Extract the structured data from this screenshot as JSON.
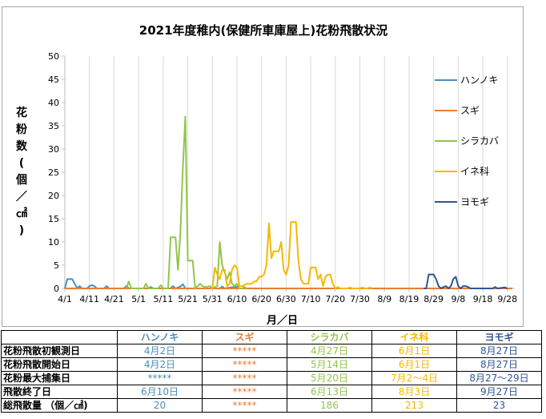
{
  "colors": {
    "alnus": "#4a8ec0",
    "cedar": "#ed7d31",
    "birch": "#92c54b",
    "grass": "#f5b800",
    "mugwort": "#2f5597"
  },
  "chart_data": {
    "type": "line",
    "title": "2021年度稚内(保健所車庫屋上)花粉飛散状況",
    "xlabel": "月／日",
    "ylabel": "花粉数(個／㎠)",
    "ylim": [
      0,
      50
    ],
    "yticks": [
      0,
      5,
      10,
      15,
      20,
      25,
      30,
      35,
      40,
      45,
      50
    ],
    "x_tick_labels": [
      "4/1",
      "4/11",
      "4/21",
      "5/1",
      "5/11",
      "5/21",
      "5/31",
      "6/10",
      "6/20",
      "6/30",
      "7/10",
      "7/20",
      "7/30",
      "8/9",
      "8/19",
      "8/29",
      "9/8",
      "9/18",
      "9/28"
    ],
    "x_range": [
      "4/1",
      "9/30"
    ],
    "grid": "vertical",
    "legend_position": "right",
    "series": [
      {
        "name": "ハンノキ",
        "color_key": "alnus",
        "points": [
          [
            "4/1",
            0
          ],
          [
            "4/2",
            2
          ],
          [
            "4/3",
            2
          ],
          [
            "4/4",
            2
          ],
          [
            "4/5",
            1
          ],
          [
            "4/6",
            0
          ],
          [
            "4/7",
            0.5
          ],
          [
            "4/8",
            0
          ],
          [
            "4/9",
            0
          ],
          [
            "4/10",
            0
          ],
          [
            "4/11",
            0.5
          ],
          [
            "4/12",
            0.7
          ],
          [
            "4/13",
            0.5
          ],
          [
            "4/14",
            0
          ],
          [
            "4/15",
            0
          ],
          [
            "4/16",
            0
          ],
          [
            "4/17",
            0
          ],
          [
            "4/18",
            0.5
          ],
          [
            "4/19",
            0
          ],
          [
            "4/20",
            0
          ],
          [
            "4/25",
            0
          ],
          [
            "4/26",
            0.5
          ],
          [
            "4/27",
            0
          ],
          [
            "5/5",
            0
          ],
          [
            "5/6",
            0.3
          ],
          [
            "5/7",
            0
          ],
          [
            "5/14",
            0
          ],
          [
            "5/15",
            0.5
          ],
          [
            "5/16",
            0
          ],
          [
            "5/18",
            0.4
          ],
          [
            "5/19",
            0.9
          ],
          [
            "5/20",
            0
          ],
          [
            "5/26",
            0
          ],
          [
            "6/3",
            0
          ],
          [
            "6/4",
            0.4
          ],
          [
            "6/5",
            0
          ],
          [
            "6/10",
            0.4
          ],
          [
            "6/11",
            0
          ]
        ]
      },
      {
        "name": "スギ",
        "color_key": "cedar",
        "points": [
          [
            "4/1",
            0
          ],
          [
            "9/30",
            0
          ]
        ]
      },
      {
        "name": "シラカバ",
        "color_key": "birch",
        "points": [
          [
            "4/26",
            0
          ],
          [
            "4/27",
            1.5
          ],
          [
            "4/28",
            0
          ],
          [
            "5/3",
            0
          ],
          [
            "5/4",
            1
          ],
          [
            "5/5",
            0
          ],
          [
            "5/9",
            0
          ],
          [
            "5/10",
            0.7
          ],
          [
            "5/11",
            0
          ],
          [
            "5/12",
            0
          ],
          [
            "5/13",
            0
          ],
          [
            "5/14",
            11
          ],
          [
            "5/15",
            11
          ],
          [
            "5/16",
            11
          ],
          [
            "5/17",
            4
          ],
          [
            "5/18",
            12
          ],
          [
            "5/19",
            26
          ],
          [
            "5/20",
            37
          ],
          [
            "5/21",
            6
          ],
          [
            "5/22",
            6
          ],
          [
            "5/23",
            6
          ],
          [
            "5/24",
            0
          ],
          [
            "5/25",
            0.5
          ],
          [
            "5/26",
            1
          ],
          [
            "5/27",
            0.5
          ],
          [
            "5/28",
            0.3
          ],
          [
            "5/29",
            0.4
          ],
          [
            "5/30",
            0.5
          ],
          [
            "5/31",
            0
          ],
          [
            "6/1",
            0.3
          ],
          [
            "6/2",
            0.5
          ],
          [
            "6/3",
            10
          ],
          [
            "6/4",
            5
          ],
          [
            "6/5",
            3.5
          ],
          [
            "6/6",
            2
          ],
          [
            "6/7",
            3.5
          ],
          [
            "6/8",
            1
          ],
          [
            "6/9",
            0.5
          ],
          [
            "6/10",
            1
          ],
          [
            "6/11",
            0
          ],
          [
            "6/12",
            0
          ],
          [
            "6/13",
            0.3
          ],
          [
            "6/14",
            0
          ]
        ]
      },
      {
        "name": "イネ科",
        "color_key": "grass",
        "points": [
          [
            "5/31",
            0
          ],
          [
            "6/1",
            4.5
          ],
          [
            "6/2",
            3
          ],
          [
            "6/3",
            2
          ],
          [
            "6/4",
            4
          ],
          [
            "6/5",
            4
          ],
          [
            "6/6",
            0.5
          ],
          [
            "6/7",
            1
          ],
          [
            "6/8",
            4
          ],
          [
            "6/9",
            5
          ],
          [
            "6/10",
            4.5
          ],
          [
            "6/11",
            0.5
          ],
          [
            "6/12",
            0.5
          ],
          [
            "6/13",
            0.7
          ],
          [
            "6/14",
            1
          ],
          [
            "6/15",
            1
          ],
          [
            "6/16",
            1
          ],
          [
            "6/17",
            1.5
          ],
          [
            "6/18",
            1.5
          ],
          [
            "6/19",
            2.5
          ],
          [
            "6/20",
            2.5
          ],
          [
            "6/21",
            3
          ],
          [
            "6/22",
            5
          ],
          [
            "6/23",
            14
          ],
          [
            "6/24",
            6.5
          ],
          [
            "6/25",
            8
          ],
          [
            "6/26",
            8
          ],
          [
            "6/27",
            8
          ],
          [
            "6/28",
            10
          ],
          [
            "6/29",
            4
          ],
          [
            "6/30",
            3
          ],
          [
            "7/1",
            5
          ],
          [
            "7/2",
            14.3
          ],
          [
            "7/3",
            14.3
          ],
          [
            "7/4",
            14.3
          ],
          [
            "7/5",
            6
          ],
          [
            "7/6",
            2
          ],
          [
            "7/7",
            1
          ],
          [
            "7/8",
            1
          ],
          [
            "7/9",
            1
          ],
          [
            "7/10",
            4.5
          ],
          [
            "7/11",
            4.5
          ],
          [
            "7/12",
            4.5
          ],
          [
            "7/13",
            2
          ],
          [
            "7/14",
            3
          ],
          [
            "7/15",
            0.5
          ],
          [
            "7/16",
            2.5
          ],
          [
            "7/17",
            3
          ],
          [
            "7/18",
            3
          ],
          [
            "7/19",
            1
          ],
          [
            "7/20",
            0
          ],
          [
            "7/21",
            0.3
          ],
          [
            "7/22",
            0
          ],
          [
            "7/25",
            0
          ],
          [
            "7/26",
            0.2
          ],
          [
            "7/27",
            0
          ],
          [
            "7/30",
            0
          ],
          [
            "7/31",
            0.2
          ],
          [
            "8/1",
            0
          ],
          [
            "8/2",
            0
          ],
          [
            "8/3",
            0.2
          ],
          [
            "8/4",
            0
          ]
        ]
      },
      {
        "name": "ヨモギ",
        "color_key": "mugwort",
        "points": [
          [
            "8/25",
            0
          ],
          [
            "8/26",
            0
          ],
          [
            "8/27",
            3
          ],
          [
            "8/28",
            3
          ],
          [
            "8/29",
            3
          ],
          [
            "8/30",
            2
          ],
          [
            "8/31",
            0.5
          ],
          [
            "9/1",
            0
          ],
          [
            "9/2",
            0.3
          ],
          [
            "9/3",
            0.5
          ],
          [
            "9/4",
            0
          ],
          [
            "9/5",
            0.5
          ],
          [
            "9/6",
            2
          ],
          [
            "9/7",
            2.5
          ],
          [
            "9/8",
            0.5
          ],
          [
            "9/9",
            0
          ],
          [
            "9/10",
            0.5
          ],
          [
            "9/11",
            0.5
          ],
          [
            "9/12",
            0.3
          ],
          [
            "9/13",
            0
          ],
          [
            "9/14",
            0
          ],
          [
            "9/15",
            0
          ],
          [
            "9/22",
            0
          ],
          [
            "9/23",
            0.3
          ],
          [
            "9/24",
            0
          ],
          [
            "9/27",
            0.2
          ],
          [
            "9/28",
            0
          ]
        ]
      }
    ]
  },
  "table": {
    "headers": [
      "ハンノキ",
      "スギ",
      "シラカバ",
      "イネ科",
      "ヨモギ"
    ],
    "rows": [
      {
        "label": "花粉飛散初観測日",
        "cells": [
          "4月2日",
          "*****",
          "4月27日",
          "6月1日",
          "8月27日"
        ]
      },
      {
        "label": "花粉飛散開始日",
        "cells": [
          "4月2日",
          "*****",
          "5月14日",
          "6月1日",
          "8月27日"
        ]
      },
      {
        "label": "花粉最大捕集日",
        "cells": [
          "*****",
          "*****",
          "5月20日",
          "7月2～4日",
          "8月27～29日"
        ]
      },
      {
        "label": "飛散終了日",
        "cells": [
          "6月10日",
          "*****",
          "6月13日",
          "8月3日",
          "9月27日"
        ]
      },
      {
        "label": "総飛散量 （個／㎠)",
        "cells": [
          "20",
          "*****",
          "186",
          "213",
          "23"
        ]
      }
    ]
  }
}
